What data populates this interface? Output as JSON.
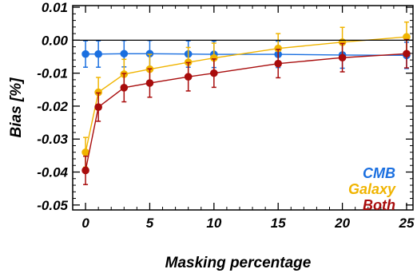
{
  "chart_data": {
    "type": "line",
    "xlabel": "Masking percentage",
    "ylabel": "Bias [%]",
    "xlim": [
      -1,
      25.5
    ],
    "ylim": [
      -0.0515,
      0.0105
    ],
    "xticks": [
      0,
      5,
      10,
      15,
      20,
      25
    ],
    "xtick_labels": [
      "0",
      "5",
      "10",
      "15",
      "20",
      "25"
    ],
    "yticks": [
      0.01,
      0.0,
      -0.01,
      -0.02,
      -0.03,
      -0.04,
      -0.05
    ],
    "ytick_labels": [
      "0.01",
      "0.00",
      "-0.01",
      "-0.02",
      "-0.03",
      "-0.04",
      "-0.05"
    ],
    "zero_line": true,
    "grid": false,
    "legend_position": "bottom-right",
    "x": [
      0,
      1,
      3,
      5,
      8,
      10,
      15,
      20,
      25
    ],
    "series": [
      {
        "name": "CMB",
        "color": "#1a6fe0",
        "values": [
          -0.0042,
          -0.0042,
          -0.0041,
          -0.0041,
          -0.0042,
          -0.0043,
          -0.0043,
          -0.0045,
          -0.0046
        ],
        "errors": [
          0.004,
          0.004,
          0.004,
          0.004,
          0.004,
          0.004,
          0.004,
          0.004,
          0.004
        ]
      },
      {
        "name": "Galaxy",
        "color": "#f0b400",
        "values": [
          -0.034,
          -0.0158,
          -0.0103,
          -0.0088,
          -0.0067,
          -0.0054,
          -0.0025,
          -0.0006,
          0.001
        ],
        "errors": [
          0.0045,
          0.0045,
          0.0045,
          0.0045,
          0.0045,
          0.0045,
          0.0045,
          0.0045,
          0.0045
        ]
      },
      {
        "name": "Both",
        "color": "#a80c0c",
        "values": [
          -0.0395,
          -0.0203,
          -0.0144,
          -0.013,
          -0.0111,
          -0.01,
          -0.0071,
          -0.0053,
          -0.0041
        ],
        "errors": [
          0.0043,
          0.0043,
          0.0043,
          0.0043,
          0.0043,
          0.0043,
          0.0043,
          0.0043,
          0.0043
        ]
      }
    ]
  }
}
